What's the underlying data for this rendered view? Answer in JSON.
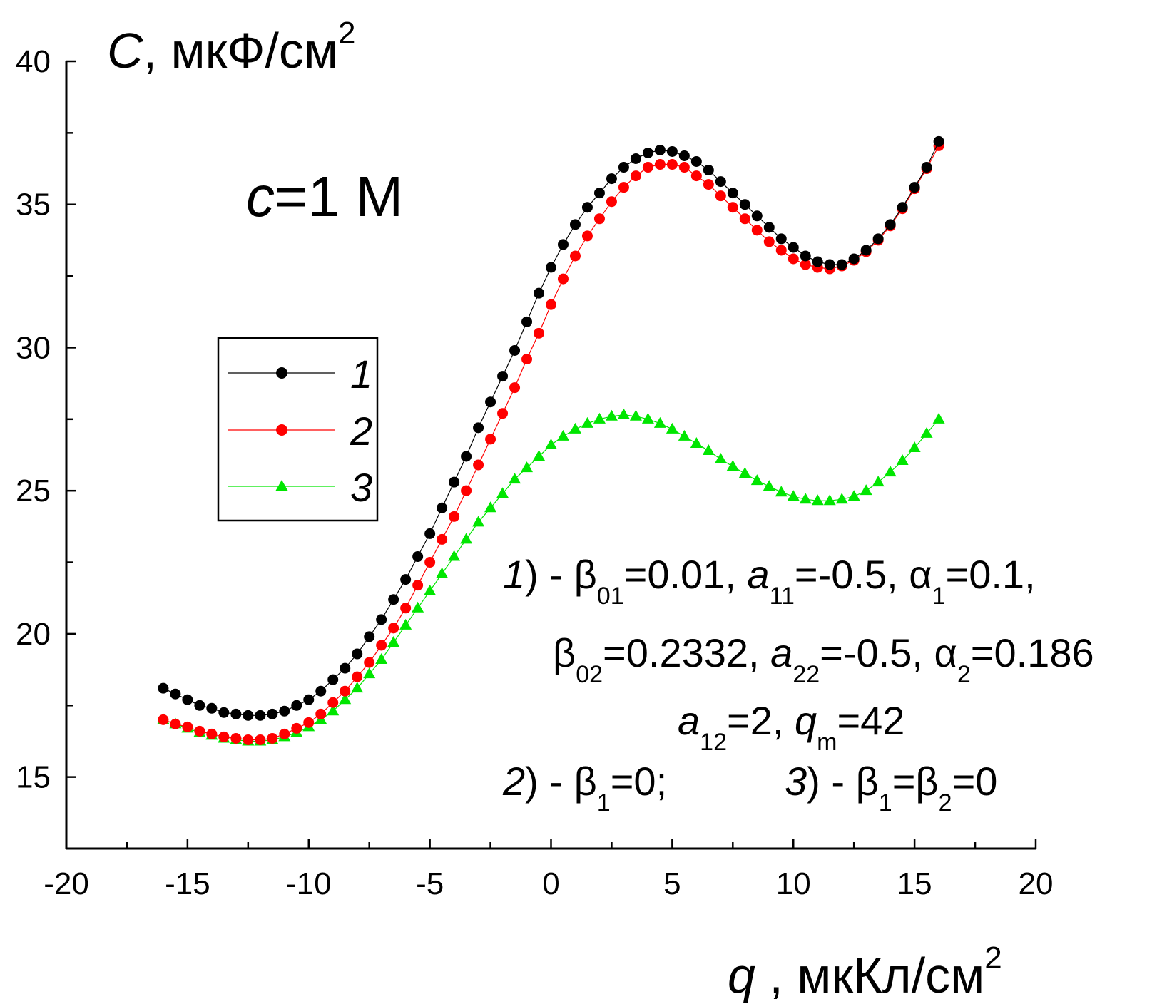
{
  "chart_data": {
    "type": "scatter",
    "title": "",
    "xlabel": "",
    "ylabel": "",
    "xlim": [
      -20,
      20
    ],
    "ylim": [
      12.5,
      40
    ],
    "x_ticks": [
      -20,
      -15,
      -10,
      -5,
      0,
      5,
      10,
      15,
      20
    ],
    "y_ticks": [
      15,
      20,
      25,
      30,
      35,
      40
    ],
    "y_axis_label": {
      "main": "C",
      "rest": ", мкФ/см",
      "sup": "2"
    },
    "x_axis_label": {
      "main": "q",
      "rest": " , мкКл/см",
      "sup": "2"
    },
    "grid": false,
    "legend_position": "upper-left",
    "concentration_label": {
      "var": "c",
      "rest": "=1 M"
    },
    "x": [
      -16.0,
      -15.5,
      -15.0,
      -14.5,
      -14.0,
      -13.5,
      -13.0,
      -12.5,
      -12.0,
      -11.5,
      -11.0,
      -10.5,
      -10.0,
      -9.5,
      -9.0,
      -8.5,
      -8.0,
      -7.5,
      -7.0,
      -6.5,
      -6.0,
      -5.5,
      -5.0,
      -4.5,
      -4.0,
      -3.5,
      -3.0,
      -2.5,
      -2.0,
      -1.5,
      -1.0,
      -0.5,
      0.0,
      0.5,
      1.0,
      1.5,
      2.0,
      2.5,
      3.0,
      3.5,
      4.0,
      4.5,
      5.0,
      5.5,
      6.0,
      6.5,
      7.0,
      7.5,
      8.0,
      8.5,
      9.0,
      9.5,
      10.0,
      10.5,
      11.0,
      11.5,
      12.0,
      12.5,
      13.0,
      13.5,
      14.0,
      14.5,
      15.0,
      15.5,
      16.0
    ],
    "series": [
      {
        "name": "1",
        "color": "#000000",
        "marker": "circle",
        "values": [
          18.1,
          17.9,
          17.7,
          17.5,
          17.4,
          17.25,
          17.2,
          17.15,
          17.15,
          17.2,
          17.3,
          17.5,
          17.7,
          18.0,
          18.4,
          18.8,
          19.3,
          19.9,
          20.5,
          21.2,
          21.9,
          22.7,
          23.5,
          24.4,
          25.3,
          26.2,
          27.2,
          28.1,
          29.0,
          29.9,
          30.9,
          31.9,
          32.8,
          33.6,
          34.3,
          34.9,
          35.4,
          35.9,
          36.3,
          36.6,
          36.8,
          36.9,
          36.85,
          36.7,
          36.5,
          36.2,
          35.8,
          35.4,
          35.0,
          34.6,
          34.2,
          33.8,
          33.5,
          33.2,
          33.0,
          32.9,
          32.9,
          33.1,
          33.4,
          33.8,
          34.3,
          34.9,
          35.6,
          36.3,
          37.2
        ]
      },
      {
        "name": "2",
        "color": "#ff0000",
        "marker": "circle",
        "values": [
          17.0,
          16.85,
          16.75,
          16.6,
          16.5,
          16.4,
          16.35,
          16.3,
          16.3,
          16.35,
          16.5,
          16.7,
          16.9,
          17.2,
          17.6,
          18.0,
          18.5,
          19.0,
          19.6,
          20.2,
          20.9,
          21.7,
          22.5,
          23.3,
          24.1,
          25.0,
          25.9,
          26.8,
          27.7,
          28.6,
          29.6,
          30.5,
          31.5,
          32.4,
          33.2,
          33.9,
          34.5,
          35.1,
          35.6,
          36.0,
          36.3,
          36.4,
          36.4,
          36.3,
          36.0,
          35.7,
          35.3,
          34.9,
          34.5,
          34.1,
          33.7,
          33.4,
          33.1,
          32.9,
          32.8,
          32.75,
          32.85,
          33.05,
          33.35,
          33.75,
          34.25,
          34.85,
          35.55,
          36.25,
          37.05
        ]
      },
      {
        "name": "3",
        "color": "#00e600",
        "marker": "triangle",
        "values": [
          17.0,
          16.85,
          16.7,
          16.55,
          16.45,
          16.35,
          16.3,
          16.25,
          16.25,
          16.3,
          16.4,
          16.55,
          16.75,
          17.0,
          17.3,
          17.7,
          18.1,
          18.6,
          19.1,
          19.7,
          20.3,
          20.9,
          21.5,
          22.1,
          22.7,
          23.3,
          23.9,
          24.4,
          24.9,
          25.4,
          25.8,
          26.2,
          26.6,
          26.9,
          27.15,
          27.35,
          27.5,
          27.6,
          27.65,
          27.6,
          27.5,
          27.35,
          27.15,
          26.9,
          26.65,
          26.4,
          26.1,
          25.85,
          25.6,
          25.35,
          25.15,
          24.95,
          24.8,
          24.7,
          24.65,
          24.65,
          24.7,
          24.8,
          25.0,
          25.3,
          25.65,
          26.05,
          26.5,
          27.0,
          27.5
        ]
      }
    ],
    "legend": [
      "1",
      "2",
      "3"
    ],
    "annotations": {
      "line1": {
        "num": "1",
        "params": [
          {
            "sym": "β",
            "sub": "01",
            "val": "=0.01, "
          },
          {
            "sym": "a",
            "sub": "11",
            "val": "=-0.5, "
          },
          {
            "sym": "α",
            "sub": "1",
            "val": "=0.1,"
          }
        ]
      },
      "line2": {
        "params": [
          {
            "sym": "β",
            "sub": "02",
            "val": "=0.2332, "
          },
          {
            "sym": "a",
            "sub": "22",
            "val": "=-0.5, "
          },
          {
            "sym": "α",
            "sub": "2",
            "val": "=0.186"
          }
        ]
      },
      "line3": {
        "params": [
          {
            "sym": "a",
            "sub": "12",
            "val": "=2,  "
          },
          {
            "sym": "q",
            "sub": "m",
            "val": "=42"
          }
        ]
      },
      "line4a": {
        "num": "2",
        "params": [
          {
            "sym": "β",
            "sub": "1",
            "val": "=0;"
          }
        ]
      },
      "line4b": {
        "num": "3",
        "params": [
          {
            "sym": "β",
            "sub": "1",
            "val": "="
          },
          {
            "sym": "β",
            "sub": "2",
            "val": "=0"
          }
        ]
      }
    }
  }
}
